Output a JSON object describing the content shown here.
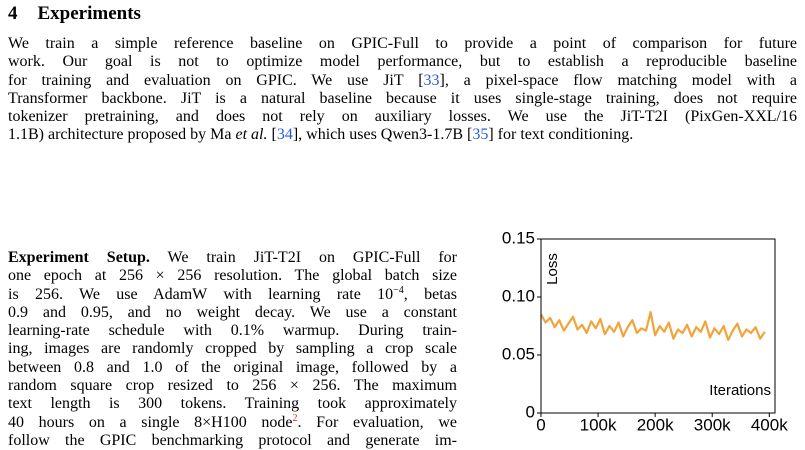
{
  "section": {
    "number": "4",
    "title": "Experiments"
  },
  "paragraphs": [
    {
      "lines": [
        [
          "We train a simple reference baseline on GPIC-Full to provide a point of comparison for future"
        ],
        [
          "work. Our goal is not to optimize model performance, but to establish a reproducible baseline"
        ],
        [
          "for training and evaluation on GPIC. We use JiT [",
          {
            "text": "33",
            "color": "#2a5bd7"
          },
          "], a pixel-space flow matching model with a"
        ],
        [
          "Transformer backbone. JiT is a natural baseline because it uses single-stage training, does not require"
        ],
        [
          "tokenizer pretraining, and does not rely on auxiliary losses. We use the JiT-T2I (PixGen-XXL/16"
        ],
        [
          "1.1B) architecture proposed by Ma ",
          {
            "text": "et al.",
            "italic": true
          },
          " [",
          {
            "text": "34",
            "color": "#2a5bd7"
          },
          "], which uses Qwen3-1.7B [",
          {
            "text": "35",
            "color": "#2a5bd7"
          },
          "] for text conditioning."
        ]
      ]
    },
    {
      "lines": [
        [
          {
            "text": "Experiment Setup.",
            "bold": true
          },
          " We train JiT-T2I on GPIC-Full for"
        ],
        [
          "one epoch at 256 × 256 resolution. The global batch size"
        ],
        [
          "is 256. We use AdamW with learning rate 10",
          {
            "text": "−4",
            "sup": true
          },
          ", betas"
        ],
        [
          "0.9 and 0.95, and no weight decay. We use a constant"
        ],
        [
          "learning-rate schedule with 0.1% warmup. During train-"
        ],
        [
          "ing, images are randomly cropped by sampling a crop scale"
        ],
        [
          "between 0.8 and 1.0 of the original image, followed by a"
        ],
        [
          "random square crop resized to 256 × 256. The maximum"
        ],
        [
          "text length is 300 tokens. Training took approximately"
        ],
        [
          "40 hours on a single 8×H100 node",
          {
            "text": "2",
            "sup": true,
            "color": "#e0201b"
          },
          ". For evaluation, we"
        ],
        [
          "follow the GPIC benchmarking protocol and generate im-"
        ]
      ]
    }
  ],
  "chart_data": {
    "type": "line",
    "ylabel": "Loss",
    "xlabel": "Iterations",
    "xlim": [
      0,
      410000
    ],
    "ylim": [
      0,
      0.15
    ],
    "xticks": [
      0,
      {
        "value": 100000,
        "label": "100k"
      },
      {
        "value": 200000,
        "label": "200k"
      },
      {
        "value": 300000,
        "label": "300k"
      },
      {
        "value": 400000,
        "label": "400k"
      }
    ],
    "yticks": [
      0,
      0.05,
      {
        "value": 0.1,
        "label": "0.10"
      },
      0.15
    ],
    "series": [
      {
        "name": "Loss",
        "color": "#f2a33a",
        "x": [
          0,
          8000,
          16000,
          24000,
          32000,
          40000,
          48000,
          56000,
          64000,
          72000,
          80000,
          88000,
          96000,
          104000,
          112000,
          120000,
          128000,
          136000,
          144000,
          152000,
          160000,
          168000,
          176000,
          184000,
          192000,
          200000,
          208000,
          216000,
          224000,
          232000,
          240000,
          248000,
          256000,
          264000,
          272000,
          280000,
          288000,
          296000,
          304000,
          312000,
          320000,
          328000,
          336000,
          344000,
          352000,
          360000,
          368000,
          376000,
          384000,
          392000
        ],
        "values": [
          0.085,
          0.078,
          0.082,
          0.074,
          0.08,
          0.071,
          0.077,
          0.083,
          0.072,
          0.076,
          0.069,
          0.079,
          0.073,
          0.081,
          0.068,
          0.075,
          0.07,
          0.078,
          0.066,
          0.074,
          0.08,
          0.069,
          0.073,
          0.071,
          0.087,
          0.067,
          0.075,
          0.07,
          0.078,
          0.064,
          0.072,
          0.069,
          0.076,
          0.066,
          0.074,
          0.07,
          0.079,
          0.065,
          0.073,
          0.068,
          0.075,
          0.063,
          0.071,
          0.077,
          0.066,
          0.072,
          0.069,
          0.074,
          0.064,
          0.07
        ]
      }
    ]
  }
}
